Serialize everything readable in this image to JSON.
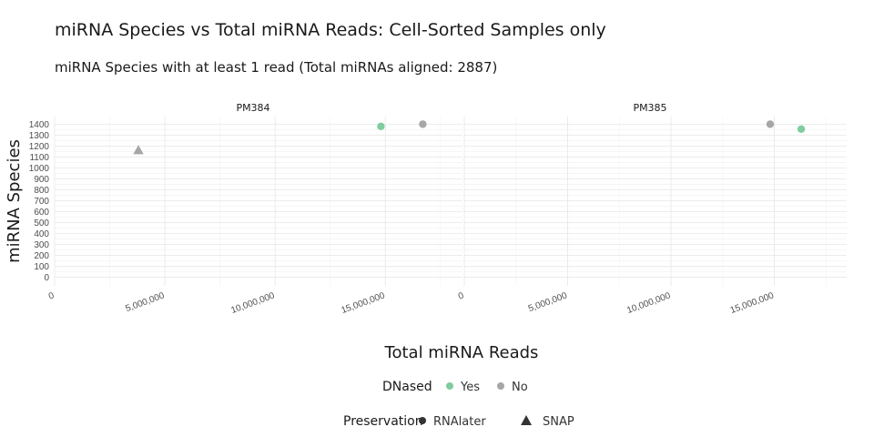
{
  "chart_data": {
    "type": "scatter",
    "title": "miRNA Species vs Total miRNA Reads: Cell-Sorted Samples only",
    "subtitle": "miRNA Species with at least 1 read (Total miRNAs aligned: 2887)",
    "xlabel": "Total miRNA Reads",
    "ylabel": "miRNA Species",
    "xlim": [
      0,
      18500000
    ],
    "ylim": [
      -80,
      1470
    ],
    "x_ticks": [
      0,
      5000000,
      10000000,
      15000000
    ],
    "x_tick_labels": [
      "0",
      "5,000,000",
      "10,000,000",
      "15,000,000"
    ],
    "y_ticks": [
      0,
      100,
      200,
      300,
      400,
      500,
      600,
      700,
      800,
      900,
      1000,
      1100,
      1200,
      1300,
      1400
    ],
    "y_tick_labels": [
      "0",
      "100",
      "200",
      "300",
      "400",
      "500",
      "600",
      "700",
      "800",
      "900",
      "1000",
      "1100",
      "1200",
      "1300",
      "1400"
    ],
    "grid": true,
    "legend_placement": "bottom",
    "legends": [
      {
        "title": "DNased",
        "entries": [
          {
            "label": "Yes",
            "color": "#7fcc9f",
            "shape": "circle"
          },
          {
            "label": "No",
            "color": "#a6a6a6",
            "shape": "circle"
          }
        ]
      },
      {
        "title": "Preservation",
        "entries": [
          {
            "label": "RNAlater",
            "color": "#333333",
            "shape": "circle"
          },
          {
            "label": "SNAP",
            "color": "#333333",
            "shape": "triangle"
          }
        ]
      }
    ],
    "panels": [
      {
        "name": "PM384",
        "points": [
          {
            "x": 14800000,
            "y": 1380,
            "dnased": "Yes",
            "preservation": "RNAlater"
          },
          {
            "x": 16700000,
            "y": 1400,
            "dnased": "No",
            "preservation": "RNAlater"
          },
          {
            "x": 3800000,
            "y": 1160,
            "dnased": "No",
            "preservation": "SNAP"
          }
        ]
      },
      {
        "name": "PM385",
        "points": [
          {
            "x": 14800000,
            "y": 1400,
            "dnased": "No",
            "preservation": "RNAlater"
          },
          {
            "x": 16300000,
            "y": 1355,
            "dnased": "Yes",
            "preservation": "RNAlater"
          }
        ]
      }
    ]
  }
}
